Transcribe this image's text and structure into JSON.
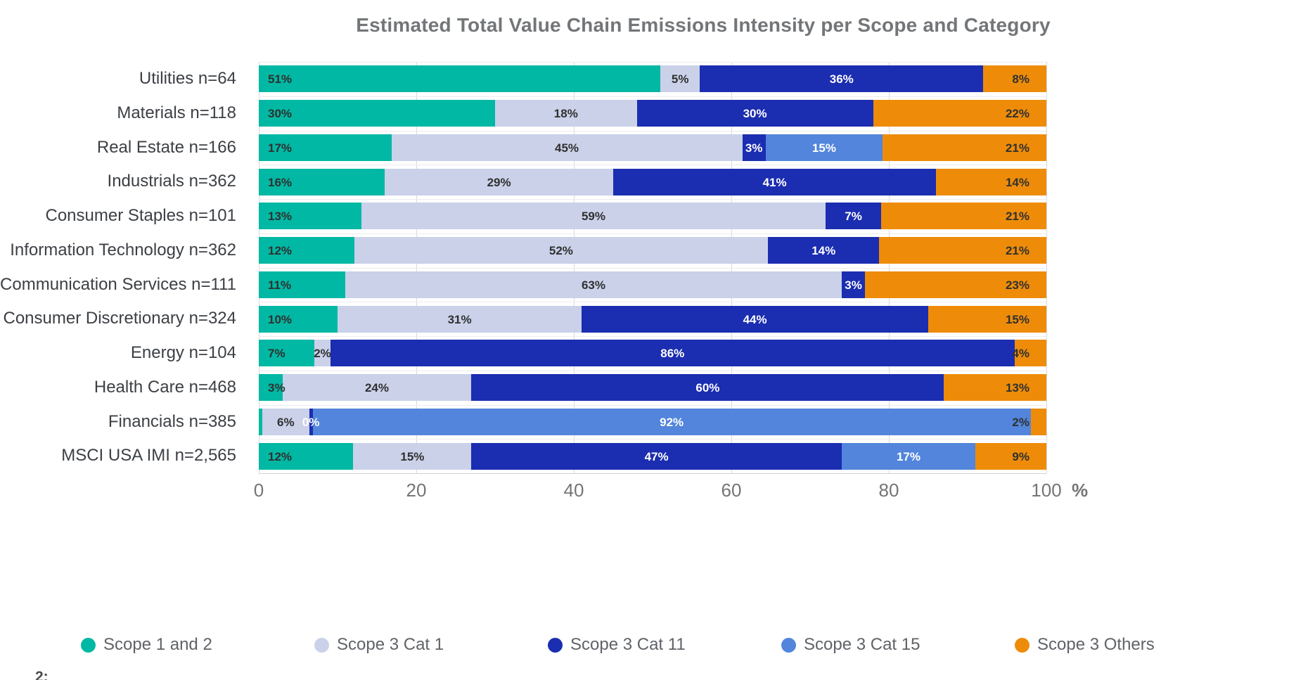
{
  "footnote": "2:",
  "chart_data": {
    "type": "bar",
    "orientation": "horizontal_stacked",
    "title": "Estimated Total Value Chain Emissions Intensity per Scope and Category",
    "unit": "%",
    "xlim": [
      0,
      100
    ],
    "x_ticks": [
      0,
      20,
      40,
      60,
      80,
      100
    ],
    "grid": true,
    "legend_position": "bottom",
    "series": [
      {
        "key": "scope12",
        "name": "Scope 1 and 2",
        "color": "#00B8A3",
        "label_color": "dark"
      },
      {
        "key": "cat1",
        "name": "Scope 3 Cat 1",
        "color": "#CAD1E9",
        "label_color": "dark"
      },
      {
        "key": "cat11",
        "name": "Scope 3 Cat 11",
        "color": "#1B2DB0",
        "label_color": "white"
      },
      {
        "key": "cat15",
        "name": "Scope 3 Cat 15",
        "color": "#5285DB",
        "label_color": "white"
      },
      {
        "key": "others",
        "name": "Scope 3 Others",
        "color": "#EE8C09",
        "label_color": "dark"
      }
    ],
    "rows": [
      {
        "category": "Utilities n=64",
        "segments": [
          {
            "key": "scope12",
            "value": 51,
            "label": "51%"
          },
          {
            "key": "cat1",
            "value": 5,
            "label": "5%"
          },
          {
            "key": "cat11",
            "value": 36,
            "label": "36%"
          },
          {
            "key": "others",
            "value": 8,
            "label": "8%"
          }
        ]
      },
      {
        "category": "Materials n=118",
        "segments": [
          {
            "key": "scope12",
            "value": 30,
            "label": "30%"
          },
          {
            "key": "cat1",
            "value": 18,
            "label": "18%"
          },
          {
            "key": "cat11",
            "value": 30,
            "label": "30%"
          },
          {
            "key": "others",
            "value": 22,
            "label": "22%"
          }
        ]
      },
      {
        "category": "Real Estate n=166",
        "segments": [
          {
            "key": "scope12",
            "value": 17,
            "label": "17%"
          },
          {
            "key": "cat1",
            "value": 45,
            "label": "45%"
          },
          {
            "key": "cat11",
            "value": 3,
            "label": "3%"
          },
          {
            "key": "cat15",
            "value": 15,
            "label": "15%"
          },
          {
            "key": "others",
            "value": 21,
            "label": "21%"
          }
        ]
      },
      {
        "category": "Industrials n=362",
        "segments": [
          {
            "key": "scope12",
            "value": 16,
            "label": "16%"
          },
          {
            "key": "cat1",
            "value": 29,
            "label": "29%"
          },
          {
            "key": "cat11",
            "value": 41,
            "label": "41%"
          },
          {
            "key": "others",
            "value": 14,
            "label": "14%"
          }
        ]
      },
      {
        "category": "Consumer Staples n=101",
        "segments": [
          {
            "key": "scope12",
            "value": 13,
            "label": "13%"
          },
          {
            "key": "cat1",
            "value": 59,
            "label": "59%"
          },
          {
            "key": "cat11",
            "value": 7,
            "label": "7%"
          },
          {
            "key": "others",
            "value": 21,
            "label": "21%"
          }
        ]
      },
      {
        "category": "Information Technology n=362",
        "segments": [
          {
            "key": "scope12",
            "value": 12,
            "label": "12%"
          },
          {
            "key": "cat1",
            "value": 52,
            "label": "52%"
          },
          {
            "key": "cat11",
            "value": 14,
            "label": "14%"
          },
          {
            "key": "others",
            "value": 21,
            "label": "21%"
          }
        ]
      },
      {
        "category": "Communication Services n=111",
        "segments": [
          {
            "key": "scope12",
            "value": 11,
            "label": "11%"
          },
          {
            "key": "cat1",
            "value": 63,
            "label": "63%"
          },
          {
            "key": "cat11",
            "value": 3,
            "label": "3%"
          },
          {
            "key": "others",
            "value": 23,
            "label": "23%"
          }
        ]
      },
      {
        "category": "Consumer Discretionary n=324",
        "segments": [
          {
            "key": "scope12",
            "value": 10,
            "label": "10%"
          },
          {
            "key": "cat1",
            "value": 31,
            "label": "31%"
          },
          {
            "key": "cat11",
            "value": 44,
            "label": "44%"
          },
          {
            "key": "others",
            "value": 15,
            "label": "15%"
          }
        ]
      },
      {
        "category": "Energy n=104",
        "segments": [
          {
            "key": "scope12",
            "value": 7,
            "label": "7%"
          },
          {
            "key": "cat1",
            "value": 2,
            "label": "2%"
          },
          {
            "key": "cat11",
            "value": 86,
            "label": "86%"
          },
          {
            "key": "others",
            "value": 4,
            "label": "4%"
          }
        ]
      },
      {
        "category": "Health Care n=468",
        "segments": [
          {
            "key": "scope12",
            "value": 3,
            "label": "3%"
          },
          {
            "key": "cat1",
            "value": 24,
            "label": "24%"
          },
          {
            "key": "cat11",
            "value": 60,
            "label": "60%"
          },
          {
            "key": "others",
            "value": 13,
            "label": "13%"
          }
        ]
      },
      {
        "category": "Financials n=385",
        "segments": [
          {
            "key": "scope12",
            "value": 0,
            "label": ""
          },
          {
            "key": "cat1",
            "value": 6,
            "label": "6%"
          },
          {
            "key": "cat11",
            "value": 0,
            "label": "0%"
          },
          {
            "key": "cat15",
            "value": 92,
            "label": "92%"
          },
          {
            "key": "others",
            "value": 2,
            "label": "2%"
          }
        ]
      },
      {
        "category": "MSCI USA IMI n=2,565",
        "segments": [
          {
            "key": "scope12",
            "value": 12,
            "label": "12%"
          },
          {
            "key": "cat1",
            "value": 15,
            "label": "15%"
          },
          {
            "key": "cat11",
            "value": 47,
            "label": "47%"
          },
          {
            "key": "cat15",
            "value": 17,
            "label": "17%"
          },
          {
            "key": "others",
            "value": 9,
            "label": "9%"
          }
        ]
      }
    ]
  }
}
